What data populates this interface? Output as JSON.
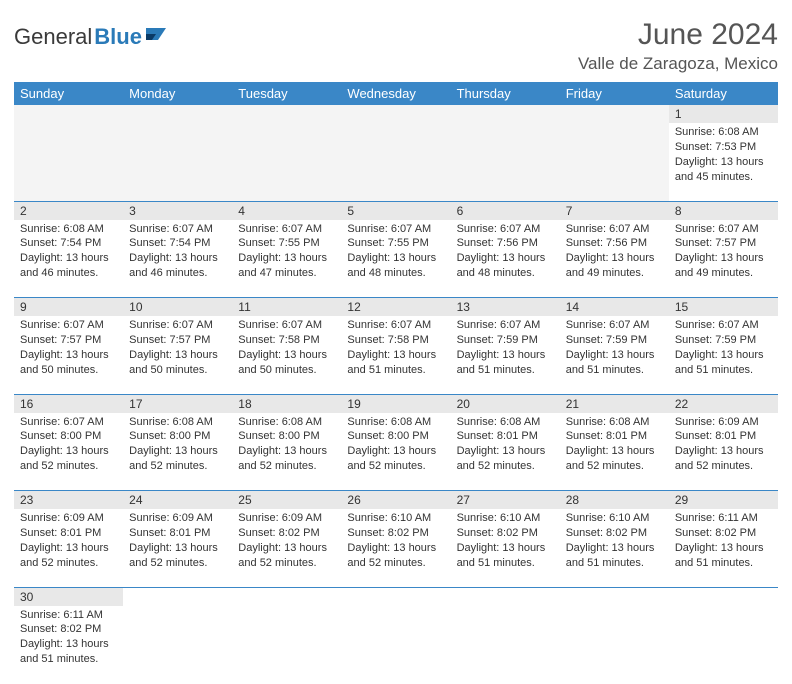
{
  "logo": {
    "text1": "General",
    "text2": "Blue"
  },
  "title": "June 2024",
  "location": "Valle de Zaragoza, Mexico",
  "colors": {
    "header_bg": "#3a87c7",
    "header_fg": "#ffffff",
    "grid_line": "#3a87c7",
    "daynum_bg": "#e8e8e8",
    "text": "#333333"
  },
  "weekdays": [
    "Sunday",
    "Monday",
    "Tuesday",
    "Wednesday",
    "Thursday",
    "Friday",
    "Saturday"
  ],
  "weeks": [
    [
      null,
      null,
      null,
      null,
      null,
      null,
      {
        "n": "1",
        "sr": "Sunrise: 6:08 AM",
        "ss": "Sunset: 7:53 PM",
        "d1": "Daylight: 13 hours",
        "d2": "and 45 minutes."
      }
    ],
    [
      {
        "n": "2",
        "sr": "Sunrise: 6:08 AM",
        "ss": "Sunset: 7:54 PM",
        "d1": "Daylight: 13 hours",
        "d2": "and 46 minutes."
      },
      {
        "n": "3",
        "sr": "Sunrise: 6:07 AM",
        "ss": "Sunset: 7:54 PM",
        "d1": "Daylight: 13 hours",
        "d2": "and 46 minutes."
      },
      {
        "n": "4",
        "sr": "Sunrise: 6:07 AM",
        "ss": "Sunset: 7:55 PM",
        "d1": "Daylight: 13 hours",
        "d2": "and 47 minutes."
      },
      {
        "n": "5",
        "sr": "Sunrise: 6:07 AM",
        "ss": "Sunset: 7:55 PM",
        "d1": "Daylight: 13 hours",
        "d2": "and 48 minutes."
      },
      {
        "n": "6",
        "sr": "Sunrise: 6:07 AM",
        "ss": "Sunset: 7:56 PM",
        "d1": "Daylight: 13 hours",
        "d2": "and 48 minutes."
      },
      {
        "n": "7",
        "sr": "Sunrise: 6:07 AM",
        "ss": "Sunset: 7:56 PM",
        "d1": "Daylight: 13 hours",
        "d2": "and 49 minutes."
      },
      {
        "n": "8",
        "sr": "Sunrise: 6:07 AM",
        "ss": "Sunset: 7:57 PM",
        "d1": "Daylight: 13 hours",
        "d2": "and 49 minutes."
      }
    ],
    [
      {
        "n": "9",
        "sr": "Sunrise: 6:07 AM",
        "ss": "Sunset: 7:57 PM",
        "d1": "Daylight: 13 hours",
        "d2": "and 50 minutes."
      },
      {
        "n": "10",
        "sr": "Sunrise: 6:07 AM",
        "ss": "Sunset: 7:57 PM",
        "d1": "Daylight: 13 hours",
        "d2": "and 50 minutes."
      },
      {
        "n": "11",
        "sr": "Sunrise: 6:07 AM",
        "ss": "Sunset: 7:58 PM",
        "d1": "Daylight: 13 hours",
        "d2": "and 50 minutes."
      },
      {
        "n": "12",
        "sr": "Sunrise: 6:07 AM",
        "ss": "Sunset: 7:58 PM",
        "d1": "Daylight: 13 hours",
        "d2": "and 51 minutes."
      },
      {
        "n": "13",
        "sr": "Sunrise: 6:07 AM",
        "ss": "Sunset: 7:59 PM",
        "d1": "Daylight: 13 hours",
        "d2": "and 51 minutes."
      },
      {
        "n": "14",
        "sr": "Sunrise: 6:07 AM",
        "ss": "Sunset: 7:59 PM",
        "d1": "Daylight: 13 hours",
        "d2": "and 51 minutes."
      },
      {
        "n": "15",
        "sr": "Sunrise: 6:07 AM",
        "ss": "Sunset: 7:59 PM",
        "d1": "Daylight: 13 hours",
        "d2": "and 51 minutes."
      }
    ],
    [
      {
        "n": "16",
        "sr": "Sunrise: 6:07 AM",
        "ss": "Sunset: 8:00 PM",
        "d1": "Daylight: 13 hours",
        "d2": "and 52 minutes."
      },
      {
        "n": "17",
        "sr": "Sunrise: 6:08 AM",
        "ss": "Sunset: 8:00 PM",
        "d1": "Daylight: 13 hours",
        "d2": "and 52 minutes."
      },
      {
        "n": "18",
        "sr": "Sunrise: 6:08 AM",
        "ss": "Sunset: 8:00 PM",
        "d1": "Daylight: 13 hours",
        "d2": "and 52 minutes."
      },
      {
        "n": "19",
        "sr": "Sunrise: 6:08 AM",
        "ss": "Sunset: 8:00 PM",
        "d1": "Daylight: 13 hours",
        "d2": "and 52 minutes."
      },
      {
        "n": "20",
        "sr": "Sunrise: 6:08 AM",
        "ss": "Sunset: 8:01 PM",
        "d1": "Daylight: 13 hours",
        "d2": "and 52 minutes."
      },
      {
        "n": "21",
        "sr": "Sunrise: 6:08 AM",
        "ss": "Sunset: 8:01 PM",
        "d1": "Daylight: 13 hours",
        "d2": "and 52 minutes."
      },
      {
        "n": "22",
        "sr": "Sunrise: 6:09 AM",
        "ss": "Sunset: 8:01 PM",
        "d1": "Daylight: 13 hours",
        "d2": "and 52 minutes."
      }
    ],
    [
      {
        "n": "23",
        "sr": "Sunrise: 6:09 AM",
        "ss": "Sunset: 8:01 PM",
        "d1": "Daylight: 13 hours",
        "d2": "and 52 minutes."
      },
      {
        "n": "24",
        "sr": "Sunrise: 6:09 AM",
        "ss": "Sunset: 8:01 PM",
        "d1": "Daylight: 13 hours",
        "d2": "and 52 minutes."
      },
      {
        "n": "25",
        "sr": "Sunrise: 6:09 AM",
        "ss": "Sunset: 8:02 PM",
        "d1": "Daylight: 13 hours",
        "d2": "and 52 minutes."
      },
      {
        "n": "26",
        "sr": "Sunrise: 6:10 AM",
        "ss": "Sunset: 8:02 PM",
        "d1": "Daylight: 13 hours",
        "d2": "and 52 minutes."
      },
      {
        "n": "27",
        "sr": "Sunrise: 6:10 AM",
        "ss": "Sunset: 8:02 PM",
        "d1": "Daylight: 13 hours",
        "d2": "and 51 minutes."
      },
      {
        "n": "28",
        "sr": "Sunrise: 6:10 AM",
        "ss": "Sunset: 8:02 PM",
        "d1": "Daylight: 13 hours",
        "d2": "and 51 minutes."
      },
      {
        "n": "29",
        "sr": "Sunrise: 6:11 AM",
        "ss": "Sunset: 8:02 PM",
        "d1": "Daylight: 13 hours",
        "d2": "and 51 minutes."
      }
    ],
    [
      {
        "n": "30",
        "sr": "Sunrise: 6:11 AM",
        "ss": "Sunset: 8:02 PM",
        "d1": "Daylight: 13 hours",
        "d2": "and 51 minutes."
      },
      null,
      null,
      null,
      null,
      null,
      null
    ]
  ]
}
